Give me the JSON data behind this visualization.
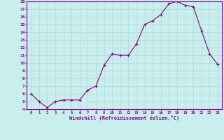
{
  "x": [
    0,
    1,
    2,
    3,
    4,
    5,
    6,
    7,
    8,
    9,
    10,
    11,
    12,
    13,
    14,
    15,
    16,
    17,
    18,
    19,
    20,
    21,
    22,
    23
  ],
  "y": [
    6.0,
    5.0,
    4.2,
    5.0,
    5.2,
    5.2,
    5.2,
    6.5,
    7.0,
    9.7,
    11.2,
    11.0,
    11.0,
    12.5,
    15.0,
    15.5,
    16.3,
    17.7,
    18.0,
    17.5,
    17.3,
    14.2,
    11.2,
    9.8
  ],
  "xlim": [
    -0.5,
    23.5
  ],
  "ylim": [
    4,
    18
  ],
  "yticks": [
    4,
    5,
    6,
    7,
    8,
    9,
    10,
    11,
    12,
    13,
    14,
    15,
    16,
    17,
    18
  ],
  "xticks": [
    0,
    1,
    2,
    3,
    4,
    5,
    6,
    7,
    8,
    9,
    10,
    11,
    12,
    13,
    14,
    15,
    16,
    17,
    18,
    19,
    20,
    21,
    22,
    23
  ],
  "xlabel": "Windchill (Refroidissement éolien,°C)",
  "line_color": "#800080",
  "marker": "+",
  "bg_color": "#c8eeee",
  "grid_color": "#b0d8d8",
  "axis_color": "#800080",
  "label_color": "#800080",
  "tick_color": "#800080"
}
